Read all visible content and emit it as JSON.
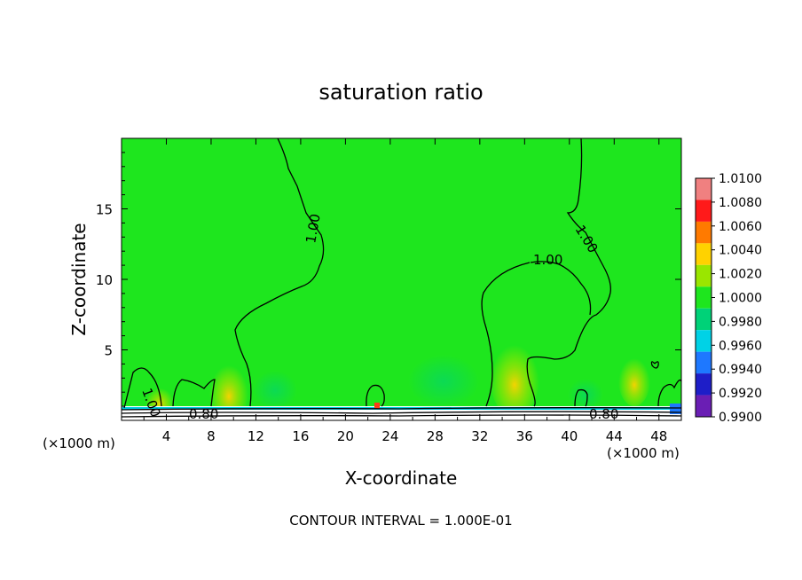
{
  "chart_data": {
    "type": "heatmap",
    "title": "saturation ratio",
    "xlabel": "X-coordinate",
    "ylabel": "Z-coordinate",
    "x_unit": "(×1000 m)",
    "y_unit": "(×1000 m)",
    "xlim": [
      0,
      50
    ],
    "ylim": [
      0,
      20
    ],
    "x_ticks": [
      "4",
      "8",
      "12",
      "16",
      "20",
      "24",
      "28",
      "32",
      "36",
      "40",
      "44",
      "48"
    ],
    "x_tick_values": [
      4,
      8,
      12,
      16,
      20,
      24,
      28,
      32,
      36,
      40,
      44,
      48
    ],
    "y_ticks": [
      "5",
      "10",
      "15"
    ],
    "y_tick_values": [
      5,
      10,
      15
    ],
    "contour_interval_text": "CONTOUR INTERVAL = 1.000E-01",
    "contour_labels": [
      "1.00",
      "1.00",
      "1.00",
      "1.00",
      "0.80",
      "0.80"
    ],
    "colorbar": {
      "levels": [
        "1.0100",
        "1.0080",
        "1.0060",
        "1.0040",
        "1.0020",
        "1.0000",
        "0.9980",
        "0.9960",
        "0.9940",
        "0.9920",
        "0.9900"
      ],
      "colors": [
        "#f08080",
        "#ff1a1a",
        "#ff7a00",
        "#ffd200",
        "#9ae600",
        "#1ee61e",
        "#00d278",
        "#00d2e6",
        "#1e78ff",
        "#1e1ec8",
        "#6a1eb4"
      ]
    },
    "background_value": 1.0,
    "background_color": "#1ee61e",
    "grid": false
  }
}
